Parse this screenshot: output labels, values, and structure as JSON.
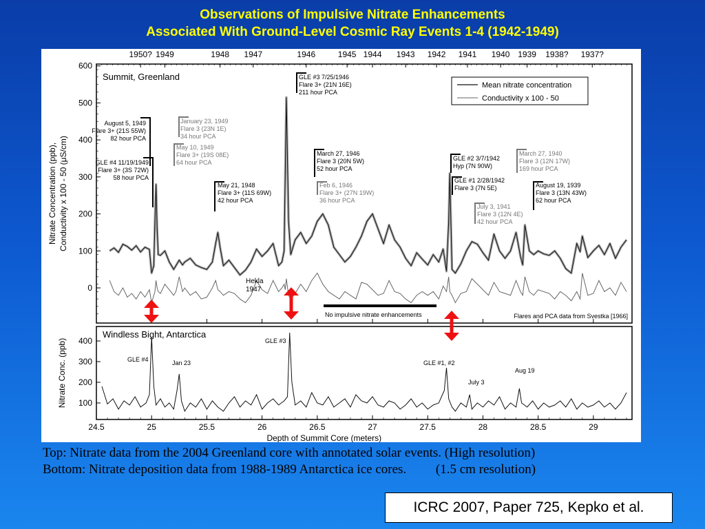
{
  "header": {
    "title_line1": "Observations of Impulsive Nitrate Enhancements",
    "title_line2": "Associated With Ground-Level Cosmic Ray Events 1-4 (1942-1949)"
  },
  "caption": {
    "line1": "Top: Nitrate data from the 2004 Greenland core with annotated solar events. (High resolution)",
    "line2": "Bottom: Nitrate deposition data from 1988-1989 Antarctica ice cores.         (1.5 cm resolution)"
  },
  "citation": "ICRC 2007, Paper 725, Kepko et al.",
  "colors": {
    "title": "#ffff00",
    "marker": "#ee1111",
    "black_line": "#111111",
    "grey_line": "#666666",
    "annotation_grey": "#777777"
  },
  "chart_data": [
    {
      "type": "line",
      "title": "Summit, Greenland",
      "ylabel_line1": "Nitrate Concentration (ppb),",
      "ylabel_line2": "Conductivity x 100 - 50 (μS/cm)",
      "xlim": [
        24.5,
        29.35
      ],
      "ylim": [
        -95,
        605
      ],
      "yticks": [
        0,
        100,
        200,
        300,
        400,
        500,
        600
      ],
      "top_axis_labels": [
        {
          "label": "1950?",
          "depth": 24.9
        },
        {
          "label": "1949",
          "depth": 25.12
        },
        {
          "label": "1948",
          "depth": 25.62
        },
        {
          "label": "1947",
          "depth": 25.92
        },
        {
          "label": "1946",
          "depth": 26.4
        },
        {
          "label": "1945",
          "depth": 26.77
        },
        {
          "label": "1944",
          "depth": 27.0
        },
        {
          "label": "1943",
          "depth": 27.3
        },
        {
          "label": "1942",
          "depth": 27.58
        },
        {
          "label": "1941",
          "depth": 27.86
        },
        {
          "label": "1940",
          "depth": 28.16
        },
        {
          "label": "1939",
          "depth": 28.4
        },
        {
          "label": "1938?",
          "depth": 28.67
        },
        {
          "label": "1937?",
          "depth": 28.99
        }
      ],
      "legend": {
        "position": "top-right",
        "entries": [
          "Mean nitrate concentration",
          "Conductivity x 100 - 50"
        ]
      },
      "series": [
        {
          "name": "Mean nitrate concentration",
          "x": [
            24.62,
            24.66,
            24.7,
            24.74,
            24.78,
            24.82,
            24.86,
            24.9,
            24.94,
            24.98,
            25.0,
            25.02,
            25.03,
            25.04,
            25.05,
            25.06,
            25.08,
            25.12,
            25.16,
            25.2,
            25.22,
            25.25,
            25.28,
            25.3,
            25.35,
            25.4,
            25.45,
            25.5,
            25.55,
            25.58,
            25.6,
            25.62,
            25.65,
            25.7,
            25.75,
            25.8,
            25.85,
            25.9,
            25.95,
            26.0,
            26.05,
            26.1,
            26.15,
            26.18,
            26.2,
            26.21,
            26.22,
            26.24,
            26.26,
            26.3,
            26.35,
            26.4,
            26.45,
            26.5,
            26.55,
            26.6,
            26.65,
            26.7,
            26.75,
            26.8,
            26.85,
            26.9,
            26.95,
            27.0,
            27.05,
            27.1,
            27.15,
            27.2,
            27.25,
            27.3,
            27.35,
            27.4,
            27.45,
            27.5,
            27.55,
            27.6,
            27.64,
            27.67,
            27.69,
            27.7,
            27.72,
            27.75,
            27.8,
            27.85,
            27.9,
            27.95,
            28.0,
            28.05,
            28.1,
            28.15,
            28.2,
            28.25,
            28.3,
            28.34,
            28.36,
            28.38,
            28.42,
            28.46,
            28.5,
            28.55,
            28.6,
            28.65,
            28.7,
            28.75,
            28.8,
            28.85,
            28.88,
            28.9,
            28.95,
            29.0,
            29.05,
            29.1,
            29.15,
            29.2,
            29.25,
            29.3
          ],
          "y": [
            100,
            108,
            96,
            118,
            112,
            102,
            114,
            97,
            110,
            104,
            40,
            60,
            180,
            280,
            160,
            90,
            88,
            100,
            70,
            50,
            60,
            75,
            62,
            70,
            80,
            62,
            55,
            50,
            70,
            120,
            150,
            110,
            60,
            75,
            55,
            35,
            48,
            70,
            105,
            85,
            100,
            120,
            60,
            70,
            100,
            310,
            515,
            180,
            90,
            130,
            150,
            120,
            140,
            180,
            200,
            170,
            110,
            90,
            70,
            85,
            110,
            140,
            180,
            200,
            160,
            120,
            170,
            130,
            110,
            80,
            60,
            95,
            78,
            62,
            90,
            70,
            105,
            45,
            180,
            310,
            50,
            40,
            65,
            100,
            125,
            118,
            95,
            75,
            145,
            100,
            80,
            100,
            150,
            85,
            62,
            170,
            100,
            90,
            100,
            92,
            88,
            100,
            80,
            52,
            40,
            120,
            98,
            140,
            82,
            100,
            115,
            90,
            120,
            80,
            110,
            130
          ]
        },
        {
          "name": "Conductivity x 100 - 50",
          "x": [
            24.62,
            24.66,
            24.7,
            24.74,
            24.78,
            24.82,
            24.86,
            24.9,
            24.94,
            24.98,
            25.0,
            25.02,
            25.03,
            25.04,
            25.05,
            25.06,
            25.08,
            25.12,
            25.16,
            25.2,
            25.22,
            25.25,
            25.28,
            25.3,
            25.35,
            25.4,
            25.45,
            25.5,
            25.55,
            25.58,
            25.6,
            25.62,
            25.65,
            25.7,
            25.75,
            25.8,
            25.85,
            25.9,
            25.95,
            26.0,
            26.05,
            26.1,
            26.15,
            26.18,
            26.2,
            26.21,
            26.22,
            26.24,
            26.26,
            26.3,
            26.35,
            26.4,
            26.45,
            26.5,
            26.55,
            26.6,
            26.65,
            26.7,
            26.75,
            26.8,
            26.85,
            26.9,
            26.95,
            27.0,
            27.05,
            27.1,
            27.15,
            27.2,
            27.25,
            27.3,
            27.35,
            27.4,
            27.45,
            27.5,
            27.55,
            27.6,
            27.64,
            27.67,
            27.69,
            27.7,
            27.72,
            27.75,
            27.8,
            27.85,
            27.9,
            27.95,
            28.0,
            28.05,
            28.1,
            28.15,
            28.2,
            28.25,
            28.3,
            28.34,
            28.36,
            28.38,
            28.42,
            28.46,
            28.5,
            28.55,
            28.6,
            28.65,
            28.7,
            28.75,
            28.8,
            28.85,
            28.88,
            28.9,
            28.95,
            29.0,
            29.05,
            29.1,
            29.15,
            29.2,
            29.25,
            29.3
          ],
          "y": [
            20,
            -10,
            -20,
            0,
            -25,
            -15,
            -30,
            -10,
            -25,
            -5,
            -40,
            -20,
            -10,
            20,
            0,
            -10,
            -15,
            10,
            -5,
            -20,
            -10,
            30,
            -10,
            0,
            -20,
            -10,
            -30,
            -25,
            0,
            20,
            -5,
            -10,
            -20,
            -10,
            -15,
            -30,
            -40,
            -20,
            20,
            -5,
            -15,
            20,
            -10,
            0,
            10,
            -5,
            25,
            -20,
            -30,
            -15,
            10,
            -10,
            20,
            40,
            10,
            -10,
            -20,
            -30,
            -10,
            -20,
            -30,
            15,
            10,
            -5,
            -20,
            -15,
            20,
            -10,
            -15,
            -30,
            -40,
            -20,
            -10,
            -20,
            -10,
            -30,
            5,
            -10,
            30,
            -10,
            -20,
            -40,
            -15,
            -10,
            25,
            10,
            -5,
            -20,
            15,
            -10,
            -15,
            -20,
            20,
            -10,
            -20,
            30,
            -10,
            -20,
            -5,
            -10,
            -15,
            -30,
            -10,
            -20,
            -35,
            -10,
            -30,
            40,
            -20,
            -15,
            20,
            -10,
            0,
            -20,
            15,
            -10
          ]
        }
      ],
      "annotations": [
        {
          "text": "August 5, 1949\nFlare 3+ (21S 55W)\n82 hour PCA",
          "tone": "black"
        },
        {
          "text": "GLE #4 11/19/1949\nFlare 3+ (3S 72W)\n58 hour PCA",
          "tone": "black"
        },
        {
          "text": "January 23, 1949\nFlare 3 (23N 1E)\n34 hour PCA",
          "tone": "grey"
        },
        {
          "text": "May 10, 1949\nFlare 3+ (19S 08E)\n64 hour PCA",
          "tone": "grey"
        },
        {
          "text": "May 21, 1948\nFlare 3+ (11S 69W)\n42 hour PCA",
          "tone": "black"
        },
        {
          "text": "GLE #3 7/25/1946\nFlare 3+ (21N 16E)\n211 hour PCA",
          "tone": "black"
        },
        {
          "text": "March 27, 1946\nFlare 3 (20N 5W)\n52 hour PCA",
          "tone": "black"
        },
        {
          "text": "Feb 6, 1946\nFlare 3+ (27N 19W)\n36 hour PCA",
          "tone": "grey"
        },
        {
          "text": "GLE #2 3/7/1942\nHyp (7N 90W)",
          "tone": "black"
        },
        {
          "text": "GLE #1 2/28/1942\nFlare 3 (7N 5E)",
          "tone": "black"
        },
        {
          "text": "March 27, 1940\nFlare 3 (12N 17W)\n169 hour PCA",
          "tone": "grey"
        },
        {
          "text": "July 3, 1941\nFlare 3 (12N 4E)\n42 hour PCA",
          "tone": "grey"
        },
        {
          "text": "August 19, 1939\nFlare 3 (13N 43W)\n62 hour PCA",
          "tone": "black"
        },
        {
          "text": "Hekla\n1947",
          "tone": "black"
        },
        {
          "text": "No impulsive nitrate enhancements",
          "tone": "black"
        },
        {
          "text": "Flares and PCA data from Svestka [1966]",
          "tone": "black"
        }
      ]
    },
    {
      "type": "line",
      "title": "Windless Bight, Antarctica",
      "ylabel": "Nitrate Conc. (ppb)",
      "xlabel": "Depth of Summit Core (meters)",
      "xlim": [
        24.5,
        29.35
      ],
      "ylim": [
        20,
        470
      ],
      "yticks": [
        100,
        200,
        300,
        400
      ],
      "xticks": [
        24.5,
        25,
        25.5,
        26,
        26.5,
        27,
        27.5,
        28,
        28.5,
        29
      ],
      "series": [
        {
          "x": [
            24.55,
            24.6,
            24.65,
            24.7,
            24.75,
            24.8,
            24.85,
            24.9,
            24.95,
            24.98,
            25.0,
            25.02,
            25.04,
            25.08,
            25.12,
            25.16,
            25.2,
            25.23,
            25.25,
            25.27,
            25.3,
            25.35,
            25.4,
            25.45,
            25.5,
            25.55,
            25.6,
            25.65,
            25.7,
            25.75,
            25.8,
            25.85,
            25.9,
            25.95,
            26.0,
            26.05,
            26.1,
            26.15,
            26.2,
            26.23,
            26.25,
            26.27,
            26.3,
            26.35,
            26.4,
            26.45,
            26.5,
            26.55,
            26.6,
            26.65,
            26.7,
            26.75,
            26.8,
            26.85,
            26.9,
            26.95,
            27.0,
            27.05,
            27.1,
            27.15,
            27.2,
            27.25,
            27.3,
            27.35,
            27.4,
            27.45,
            27.5,
            27.55,
            27.6,
            27.65,
            27.67,
            27.69,
            27.72,
            27.75,
            27.8,
            27.85,
            27.88,
            27.9,
            27.95,
            28.0,
            28.05,
            28.1,
            28.15,
            28.2,
            28.25,
            28.3,
            28.33,
            28.35,
            28.4,
            28.45,
            28.5,
            28.55,
            28.6,
            28.65,
            28.7,
            28.75,
            28.8,
            28.85,
            28.9,
            28.95,
            29.0,
            29.05,
            29.1,
            29.15,
            29.2,
            29.25,
            29.3
          ],
          "y": [
            180,
            95,
            120,
            70,
            110,
            90,
            130,
            80,
            100,
            140,
            420,
            180,
            90,
            120,
            80,
            100,
            70,
            160,
            240,
            110,
            60,
            100,
            80,
            120,
            70,
            110,
            80,
            60,
            100,
            130,
            80,
            110,
            90,
            140,
            70,
            100,
            120,
            90,
            110,
            130,
            440,
            200,
            90,
            110,
            80,
            150,
            100,
            90,
            130,
            80,
            100,
            120,
            80,
            140,
            110,
            100,
            130,
            90,
            80,
            110,
            100,
            70,
            90,
            120,
            80,
            100,
            70,
            90,
            100,
            160,
            270,
            120,
            80,
            60,
            100,
            80,
            140,
            70,
            100,
            80,
            110,
            90,
            130,
            70,
            100,
            80,
            170,
            100,
            80,
            110,
            70,
            100,
            80,
            90,
            110,
            80,
            120,
            70,
            100,
            80,
            90,
            110,
            80,
            100,
            70,
            100,
            150
          ]
        }
      ],
      "annotations": [
        {
          "text": "GLE #4"
        },
        {
          "text": "Jan 23"
        },
        {
          "text": "GLE #3"
        },
        {
          "text": "GLE #1, #2"
        },
        {
          "text": "July 3"
        },
        {
          "text": "Aug 19"
        }
      ]
    }
  ]
}
